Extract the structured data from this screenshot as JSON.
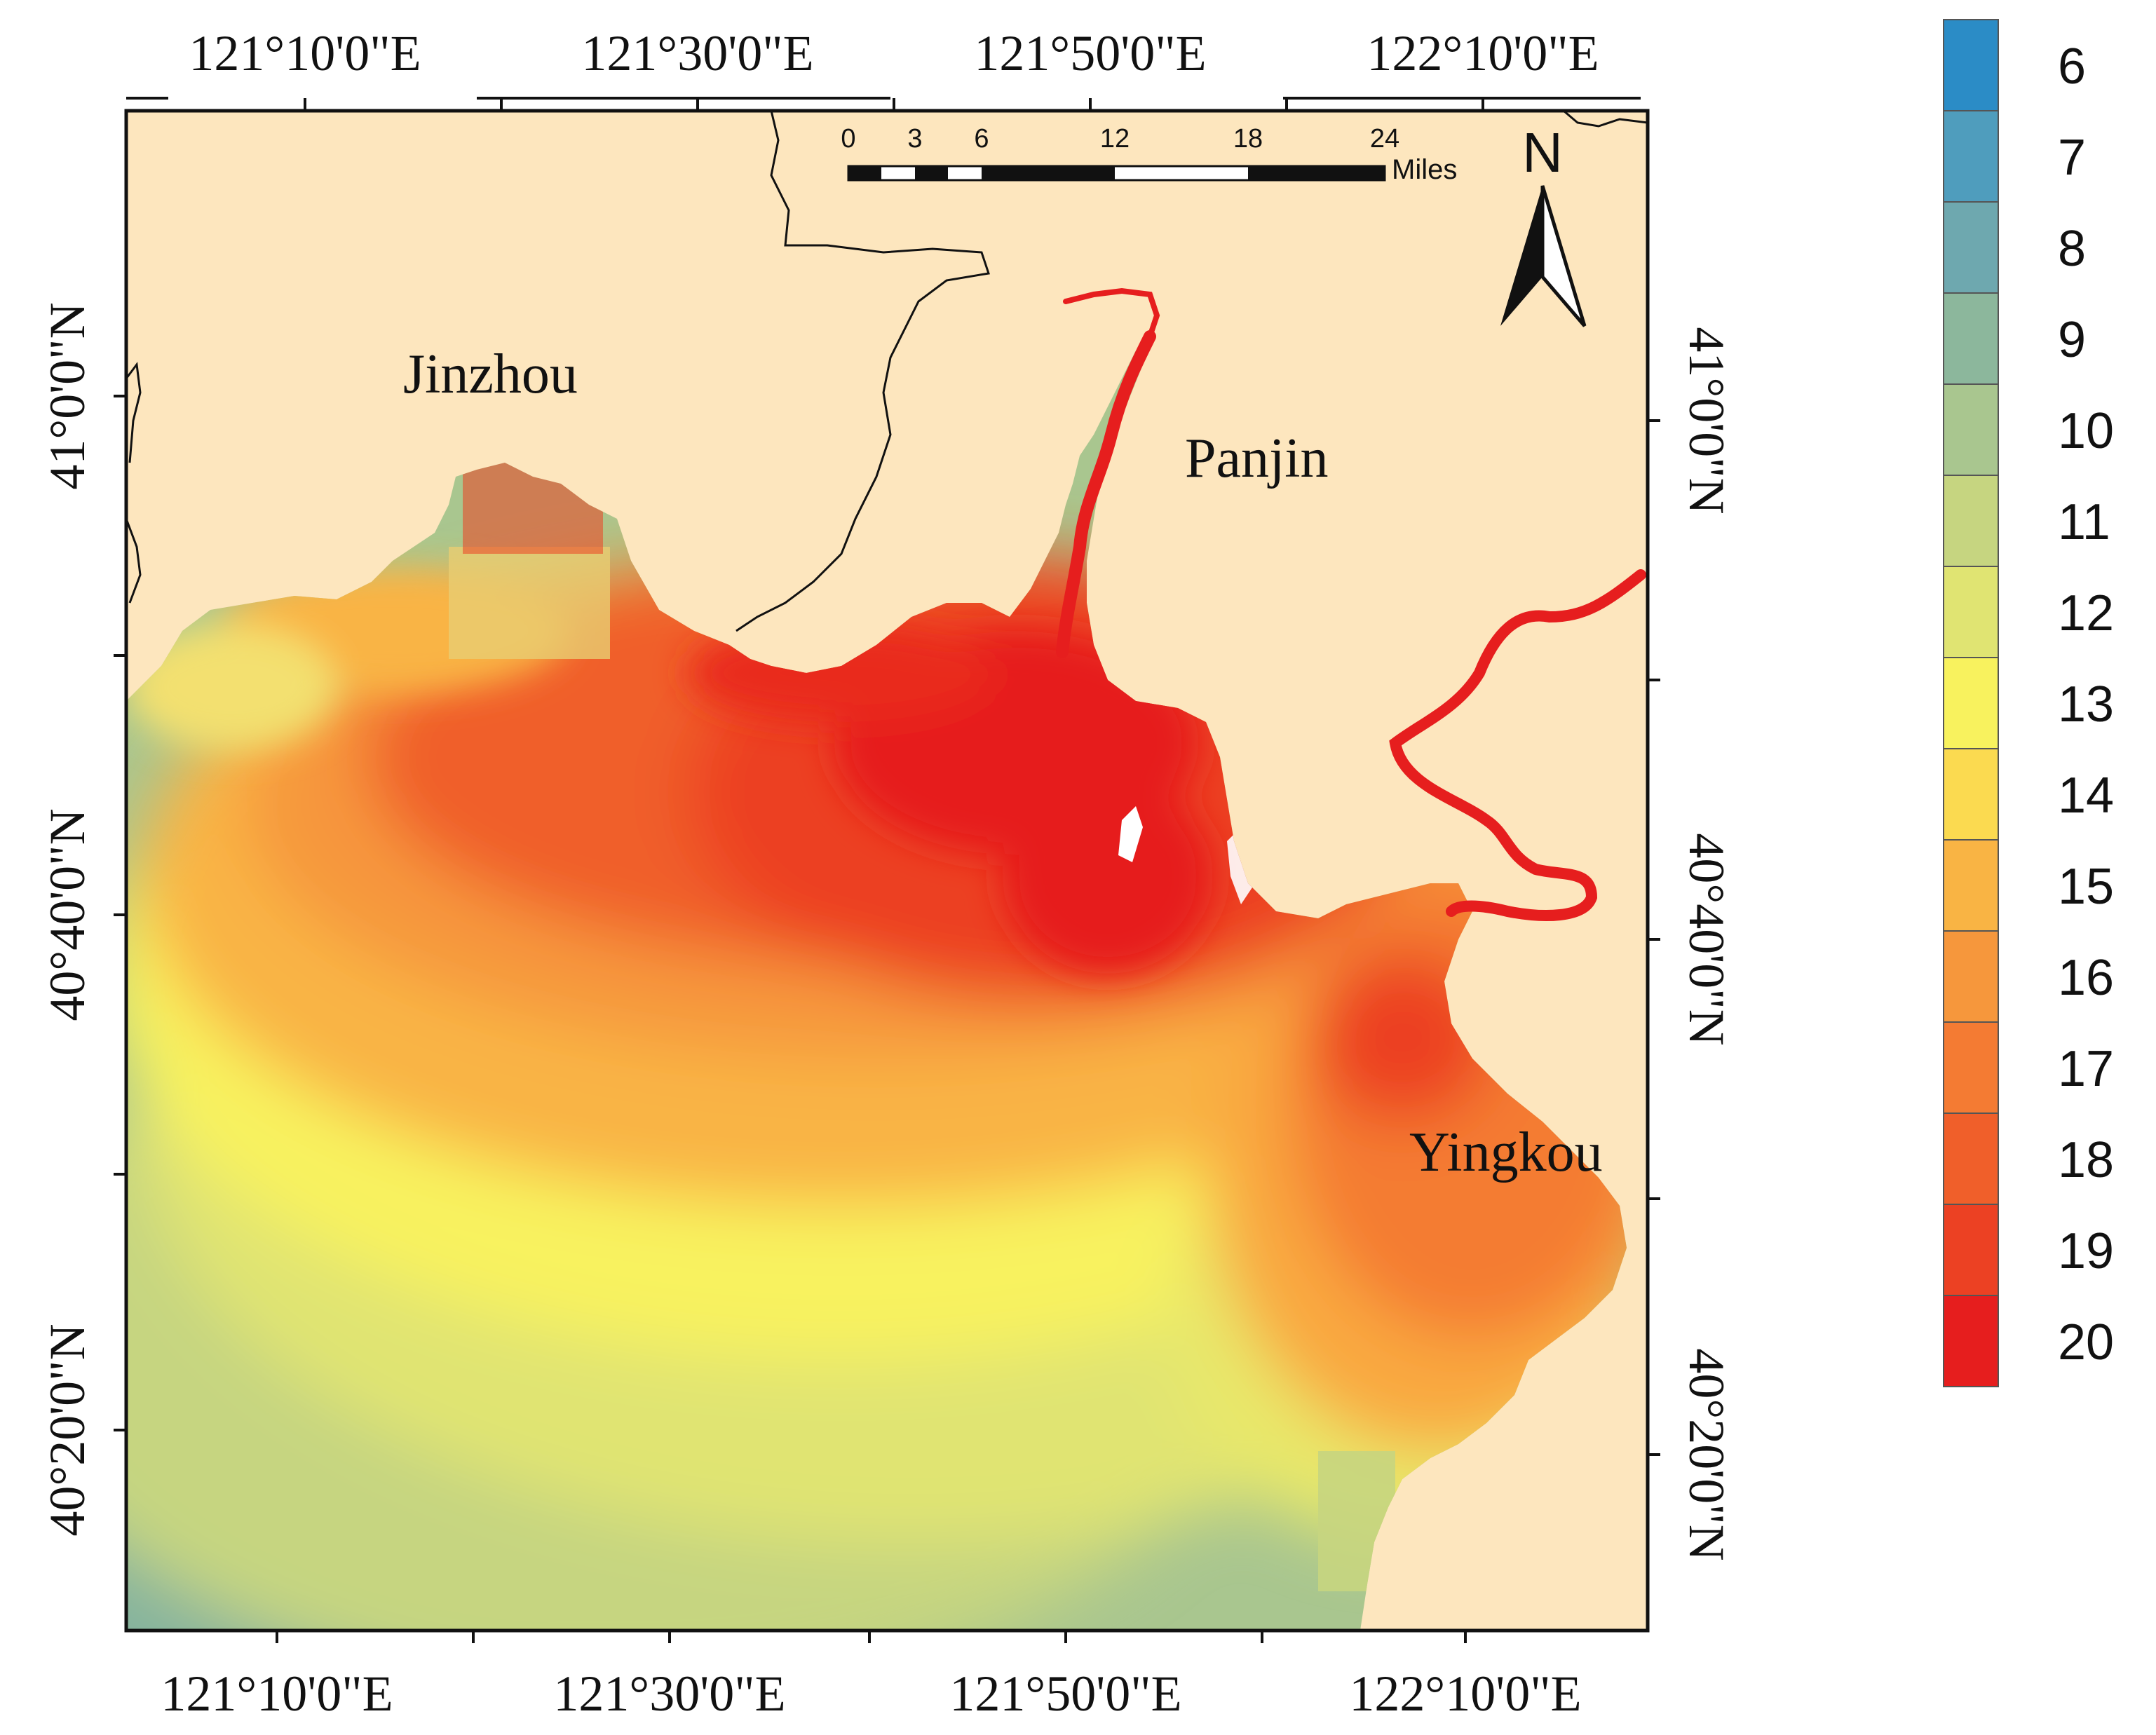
{
  "map": {
    "place_labels": [
      "Jinzhou",
      "Panjin",
      "Yingkou"
    ],
    "top_longitudes": [
      "121°10'0\"E",
      "121°30'0\"E",
      "121°50'0\"E",
      "122°10'0\"E"
    ],
    "bottom_longitudes": [
      "121°10'0\"E",
      "121°30'0\"E",
      "121°50'0\"E",
      "122°10'0\"E"
    ],
    "left_latitudes": [
      "41°0'0\"N",
      "40°40'0\"N",
      "40°20'0\"N"
    ],
    "right_latitudes": [
      "41°0'0\"N",
      "40°40'0\"N",
      "40°20'0\"N"
    ],
    "north_arrow_label": "N",
    "scale_bar": {
      "ticks": [
        "0",
        "3",
        "6",
        "12",
        "18",
        "24"
      ],
      "units": "Miles"
    },
    "colors": {
      "land": "#FDE6BE",
      "frame": "#111111",
      "white_patch": "#FFFFFF"
    }
  },
  "legend": {
    "classes": [
      {
        "label": "6",
        "color": "#2B8CC6"
      },
      {
        "label": "7",
        "color": "#4F9DBD"
      },
      {
        "label": "8",
        "color": "#6EA8AF"
      },
      {
        "label": "9",
        "color": "#8CB79C"
      },
      {
        "label": "10",
        "color": "#A9C68F"
      },
      {
        "label": "11",
        "color": "#C6D580"
      },
      {
        "label": "12",
        "color": "#E0E472"
      },
      {
        "label": "13",
        "color": "#F8F25E"
      },
      {
        "label": "14",
        "color": "#FBDA50"
      },
      {
        "label": "15",
        "color": "#F9B444"
      },
      {
        "label": "16",
        "color": "#F6973C"
      },
      {
        "label": "17",
        "color": "#F47B33"
      },
      {
        "label": "18",
        "color": "#F05F2A"
      },
      {
        "label": "19",
        "color": "#EC4123"
      },
      {
        "label": "20",
        "color": "#E61E1E"
      }
    ]
  }
}
